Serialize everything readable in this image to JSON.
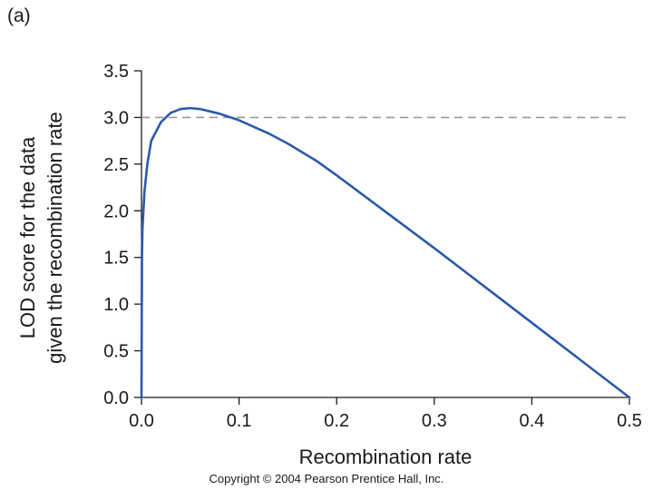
{
  "panel_label": "(a)",
  "copyright": "Copyright © 2004 Pearson Prentice Hall, Inc.",
  "chart_data": {
    "type": "line",
    "title": "",
    "xlabel": "Recombination rate",
    "ylabel_lines": [
      "LOD score for the data",
      "given the recombination rate"
    ],
    "xlim": [
      0,
      0.5
    ],
    "ylim": [
      0,
      3.5
    ],
    "x_ticks": [
      0.0,
      0.1,
      0.2,
      0.3,
      0.4,
      0.5
    ],
    "x_tick_labels": [
      "0.0",
      "0.1",
      "0.2",
      "0.3",
      "0.4",
      "0.5"
    ],
    "y_ticks": [
      0.0,
      0.5,
      1.0,
      1.5,
      2.0,
      2.5,
      3.0,
      3.5
    ],
    "y_tick_labels": [
      "0.0",
      "0.5",
      "1.0",
      "1.5",
      "2.0",
      "2.5",
      "3.0",
      "3.5"
    ],
    "grid": false,
    "reference_line": {
      "y": 3.0,
      "style": "dashed",
      "color": "#999999"
    },
    "series": [
      {
        "color": "#2b5aa8",
        "x": [
          0.0,
          0.0005,
          0.001,
          0.003,
          0.006,
          0.01,
          0.02,
          0.03,
          0.04,
          0.05,
          0.06,
          0.08,
          0.1,
          0.13,
          0.15,
          0.18,
          0.2,
          0.25,
          0.3,
          0.35,
          0.4,
          0.45,
          0.5
        ],
        "y": [
          0.0,
          1.5,
          1.8,
          2.2,
          2.5,
          2.75,
          2.95,
          3.05,
          3.09,
          3.1,
          3.09,
          3.04,
          2.97,
          2.83,
          2.72,
          2.53,
          2.38,
          1.99,
          1.6,
          1.2,
          0.8,
          0.4,
          0.0
        ]
      }
    ]
  }
}
